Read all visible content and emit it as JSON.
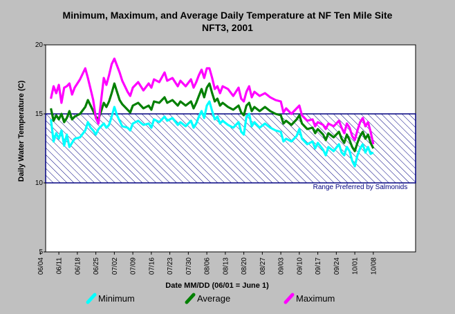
{
  "chart_data": {
    "type": "line",
    "title": "Minimum, Maximum, and Average Daily Temperature at NF Ten Mile Site",
    "subtitle": "NFT3, 2001",
    "xlabel": "Date MM/DD (06/01 = June 1)",
    "ylabel": "Daily Water Temperature (C)",
    "ylim": [
      5,
      20
    ],
    "yticks": [
      "5",
      "10",
      "15",
      "20"
    ],
    "xlim_day": [
      157,
      297
    ],
    "xticks": [
      {
        "label": "06/04",
        "day": 155
      },
      {
        "label": "06/11",
        "day": 162
      },
      {
        "label": "06/18",
        "day": 169
      },
      {
        "label": "06/25",
        "day": 176
      },
      {
        "label": "07/02",
        "day": 183
      },
      {
        "label": "07/09",
        "day": 190
      },
      {
        "label": "07/16",
        "day": 197
      },
      {
        "label": "07/23",
        "day": 204
      },
      {
        "label": "07/30",
        "day": 211
      },
      {
        "label": "08/06",
        "day": 218
      },
      {
        "label": "08/13",
        "day": 225
      },
      {
        "label": "08/20",
        "day": 232
      },
      {
        "label": "08/27",
        "day": 239
      },
      {
        "label": "09/03",
        "day": 246
      },
      {
        "label": "09/10",
        "day": 253
      },
      {
        "label": "09/17",
        "day": 260
      },
      {
        "label": "09/24",
        "day": 267
      },
      {
        "label": "10/01",
        "day": 274
      },
      {
        "label": "10/08",
        "day": 281
      }
    ],
    "grid": false,
    "legend_position": "bottom",
    "preferred_range": {
      "label": "Range Preferred by Salmonids",
      "low": 10,
      "high": 15,
      "color": "#000080"
    },
    "series": [
      {
        "name": "Minimum",
        "color": "#00ffff",
        "points": [
          [
            159,
            14.6
          ],
          [
            160,
            13.0
          ],
          [
            161,
            13.6
          ],
          [
            162,
            13.2
          ],
          [
            163,
            13.8
          ],
          [
            164,
            12.7
          ],
          [
            165,
            13.5
          ],
          [
            166,
            12.6
          ],
          [
            167,
            12.9
          ],
          [
            168,
            13.2
          ],
          [
            170,
            13.3
          ],
          [
            172,
            13.8
          ],
          [
            173,
            14.4
          ],
          [
            174,
            14.0
          ],
          [
            175,
            13.8
          ],
          [
            176,
            13.5
          ],
          [
            177,
            13.9
          ],
          [
            178,
            14.1
          ],
          [
            179,
            14.3
          ],
          [
            180,
            14.0
          ],
          [
            181,
            14.2
          ],
          [
            182,
            14.8
          ],
          [
            183,
            15.5
          ],
          [
            184,
            14.9
          ],
          [
            185,
            14.5
          ],
          [
            186,
            14.1
          ],
          [
            188,
            14.0
          ],
          [
            189,
            13.8
          ],
          [
            190,
            14.3
          ],
          [
            192,
            14.5
          ],
          [
            194,
            14.2
          ],
          [
            196,
            14.3
          ],
          [
            197,
            14.0
          ],
          [
            198,
            14.6
          ],
          [
            200,
            14.4
          ],
          [
            202,
            14.8
          ],
          [
            203,
            14.5
          ],
          [
            205,
            14.7
          ],
          [
            207,
            14.2
          ],
          [
            208,
            14.4
          ],
          [
            210,
            14.1
          ],
          [
            212,
            14.5
          ],
          [
            213,
            14.0
          ],
          [
            214,
            14.3
          ],
          [
            215,
            14.8
          ],
          [
            216,
            15.2
          ],
          [
            217,
            14.7
          ],
          [
            218,
            15.6
          ],
          [
            219,
            15.9
          ],
          [
            220,
            15.2
          ],
          [
            221,
            14.6
          ],
          [
            222,
            14.8
          ],
          [
            223,
            14.3
          ],
          [
            224,
            14.5
          ],
          [
            226,
            14.2
          ],
          [
            228,
            14.0
          ],
          [
            230,
            14.4
          ],
          [
            231,
            13.7
          ],
          [
            232,
            13.5
          ],
          [
            233,
            14.8
          ],
          [
            234,
            15.0
          ],
          [
            235,
            14.1
          ],
          [
            236,
            14.4
          ],
          [
            238,
            14.0
          ],
          [
            240,
            14.3
          ],
          [
            242,
            14.0
          ],
          [
            244,
            13.8
          ],
          [
            246,
            13.7
          ],
          [
            247,
            13.0
          ],
          [
            248,
            13.2
          ],
          [
            250,
            13.0
          ],
          [
            252,
            13.4
          ],
          [
            253,
            13.9
          ],
          [
            254,
            13.2
          ],
          [
            256,
            12.8
          ],
          [
            258,
            13.0
          ],
          [
            259,
            12.5
          ],
          [
            260,
            12.9
          ],
          [
            262,
            12.4
          ],
          [
            263,
            12.0
          ],
          [
            264,
            12.6
          ],
          [
            266,
            12.3
          ],
          [
            268,
            12.8
          ],
          [
            269,
            12.2
          ],
          [
            270,
            12.0
          ],
          [
            271,
            12.6
          ],
          [
            272,
            12.3
          ],
          [
            273,
            11.6
          ],
          [
            274,
            11.2
          ],
          [
            275,
            12.0
          ],
          [
            276,
            12.5
          ],
          [
            277,
            12.8
          ],
          [
            278,
            12.2
          ],
          [
            279,
            12.6
          ],
          [
            280,
            12.1
          ],
          [
            281,
            12.2
          ]
        ]
      },
      {
        "name": "Average",
        "color": "#008000",
        "points": [
          [
            159,
            15.4
          ],
          [
            160,
            14.5
          ],
          [
            161,
            14.9
          ],
          [
            162,
            14.6
          ],
          [
            163,
            15.0
          ],
          [
            164,
            14.4
          ],
          [
            165,
            14.7
          ],
          [
            166,
            15.2
          ],
          [
            167,
            14.6
          ],
          [
            168,
            14.8
          ],
          [
            170,
            15.0
          ],
          [
            172,
            15.5
          ],
          [
            173,
            16.0
          ],
          [
            174,
            15.6
          ],
          [
            175,
            15.2
          ],
          [
            176,
            14.8
          ],
          [
            177,
            14.6
          ],
          [
            178,
            15.2
          ],
          [
            179,
            15.8
          ],
          [
            180,
            15.5
          ],
          [
            181,
            15.9
          ],
          [
            182,
            16.5
          ],
          [
            183,
            17.2
          ],
          [
            184,
            16.6
          ],
          [
            185,
            16.0
          ],
          [
            186,
            15.7
          ],
          [
            188,
            15.3
          ],
          [
            189,
            15.1
          ],
          [
            190,
            15.6
          ],
          [
            192,
            15.8
          ],
          [
            194,
            15.4
          ],
          [
            196,
            15.6
          ],
          [
            197,
            15.3
          ],
          [
            198,
            15.9
          ],
          [
            200,
            15.8
          ],
          [
            202,
            16.2
          ],
          [
            203,
            15.8
          ],
          [
            205,
            16.0
          ],
          [
            207,
            15.6
          ],
          [
            208,
            15.9
          ],
          [
            210,
            15.6
          ],
          [
            212,
            15.9
          ],
          [
            213,
            15.4
          ],
          [
            214,
            15.8
          ],
          [
            215,
            16.3
          ],
          [
            216,
            16.8
          ],
          [
            217,
            16.2
          ],
          [
            218,
            16.9
          ],
          [
            219,
            17.2
          ],
          [
            220,
            16.5
          ],
          [
            221,
            15.9
          ],
          [
            222,
            16.1
          ],
          [
            223,
            15.6
          ],
          [
            224,
            15.8
          ],
          [
            226,
            15.5
          ],
          [
            228,
            15.3
          ],
          [
            230,
            15.6
          ],
          [
            231,
            15.1
          ],
          [
            232,
            14.9
          ],
          [
            233,
            15.6
          ],
          [
            234,
            15.8
          ],
          [
            235,
            15.2
          ],
          [
            236,
            15.5
          ],
          [
            238,
            15.2
          ],
          [
            240,
            15.5
          ],
          [
            242,
            15.2
          ],
          [
            244,
            15.0
          ],
          [
            246,
            14.9
          ],
          [
            247,
            14.3
          ],
          [
            248,
            14.5
          ],
          [
            250,
            14.2
          ],
          [
            252,
            14.6
          ],
          [
            253,
            14.9
          ],
          [
            254,
            14.3
          ],
          [
            256,
            13.9
          ],
          [
            258,
            14.0
          ],
          [
            259,
            13.6
          ],
          [
            260,
            13.9
          ],
          [
            262,
            13.5
          ],
          [
            263,
            13.1
          ],
          [
            264,
            13.6
          ],
          [
            266,
            13.3
          ],
          [
            268,
            13.7
          ],
          [
            269,
            13.2
          ],
          [
            270,
            12.9
          ],
          [
            271,
            13.5
          ],
          [
            272,
            13.1
          ],
          [
            273,
            12.6
          ],
          [
            274,
            12.3
          ],
          [
            275,
            12.9
          ],
          [
            276,
            13.4
          ],
          [
            277,
            13.7
          ],
          [
            278,
            13.2
          ],
          [
            279,
            13.5
          ],
          [
            280,
            12.9
          ],
          [
            281,
            12.5
          ]
        ]
      },
      {
        "name": "Maximum",
        "color": "#ff00ff",
        "points": [
          [
            159,
            16.1
          ],
          [
            160,
            17.0
          ],
          [
            161,
            16.5
          ],
          [
            162,
            17.1
          ],
          [
            163,
            15.8
          ],
          [
            164,
            16.9
          ],
          [
            165,
            17.0
          ],
          [
            166,
            17.2
          ],
          [
            167,
            16.4
          ],
          [
            168,
            16.9
          ],
          [
            170,
            17.5
          ],
          [
            172,
            18.3
          ],
          [
            173,
            17.6
          ],
          [
            174,
            16.8
          ],
          [
            175,
            16.0
          ],
          [
            176,
            14.7
          ],
          [
            177,
            14.3
          ],
          [
            178,
            16.0
          ],
          [
            179,
            17.6
          ],
          [
            180,
            17.1
          ],
          [
            181,
            17.8
          ],
          [
            182,
            18.6
          ],
          [
            183,
            19.0
          ],
          [
            184,
            18.5
          ],
          [
            185,
            18.0
          ],
          [
            186,
            17.4
          ],
          [
            188,
            16.6
          ],
          [
            189,
            16.3
          ],
          [
            190,
            16.9
          ],
          [
            192,
            17.3
          ],
          [
            194,
            16.7
          ],
          [
            196,
            17.2
          ],
          [
            197,
            16.9
          ],
          [
            198,
            17.5
          ],
          [
            200,
            17.3
          ],
          [
            202,
            18.0
          ],
          [
            203,
            17.4
          ],
          [
            205,
            17.6
          ],
          [
            207,
            17.0
          ],
          [
            208,
            17.4
          ],
          [
            210,
            17.0
          ],
          [
            212,
            17.5
          ],
          [
            213,
            16.9
          ],
          [
            214,
            17.3
          ],
          [
            215,
            17.8
          ],
          [
            216,
            18.2
          ],
          [
            217,
            17.6
          ],
          [
            218,
            18.3
          ],
          [
            219,
            18.3
          ],
          [
            220,
            17.6
          ],
          [
            221,
            16.8
          ],
          [
            222,
            17.0
          ],
          [
            223,
            16.5
          ],
          [
            224,
            17.0
          ],
          [
            226,
            16.8
          ],
          [
            228,
            16.3
          ],
          [
            230,
            16.9
          ],
          [
            231,
            16.1
          ],
          [
            232,
            15.9
          ],
          [
            233,
            16.6
          ],
          [
            234,
            17.0
          ],
          [
            235,
            16.2
          ],
          [
            236,
            16.6
          ],
          [
            238,
            16.3
          ],
          [
            240,
            16.5
          ],
          [
            242,
            16.2
          ],
          [
            244,
            16.0
          ],
          [
            246,
            15.9
          ],
          [
            247,
            15.1
          ],
          [
            248,
            15.4
          ],
          [
            250,
            15.0
          ],
          [
            252,
            15.4
          ],
          [
            253,
            15.6
          ],
          [
            254,
            14.9
          ],
          [
            256,
            14.5
          ],
          [
            258,
            14.6
          ],
          [
            259,
            14.1
          ],
          [
            260,
            14.4
          ],
          [
            262,
            14.2
          ],
          [
            263,
            13.9
          ],
          [
            264,
            14.3
          ],
          [
            266,
            14.1
          ],
          [
            268,
            14.5
          ],
          [
            269,
            14.0
          ],
          [
            270,
            13.6
          ],
          [
            271,
            14.3
          ],
          [
            272,
            14.0
          ],
          [
            273,
            13.4
          ],
          [
            274,
            13.1
          ],
          [
            275,
            13.8
          ],
          [
            276,
            14.4
          ],
          [
            277,
            14.7
          ],
          [
            278,
            14.1
          ],
          [
            279,
            14.4
          ],
          [
            280,
            13.7
          ],
          [
            281,
            12.8
          ]
        ]
      }
    ]
  }
}
